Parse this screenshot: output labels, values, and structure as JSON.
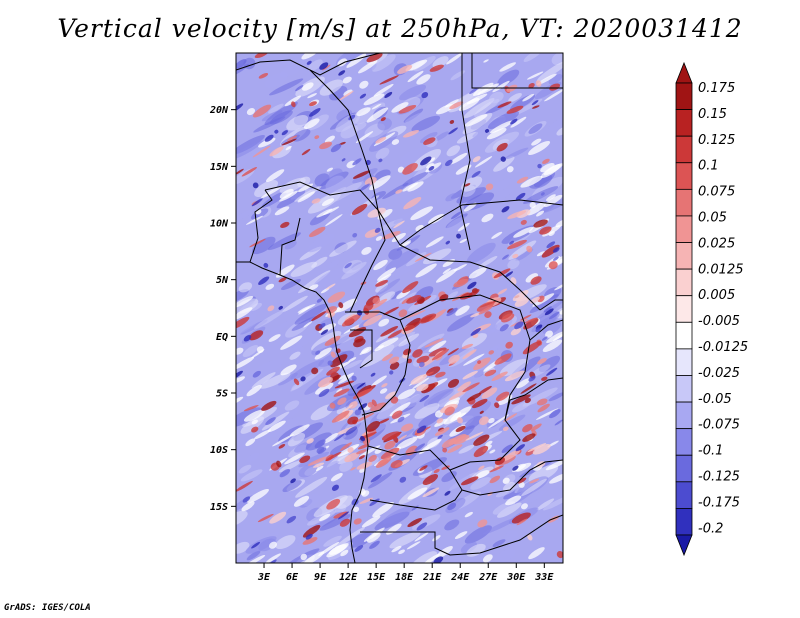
{
  "title": "Vertical velocity [m/s] at 250hPa, VT: 2020031412",
  "footer": "GrADS: IGES/COLA",
  "map": {
    "lon_range": [
      0,
      35
    ],
    "lat_range": [
      -20,
      25
    ],
    "lat_ticks": [
      {
        "value": 20,
        "label": "20N"
      },
      {
        "value": 15,
        "label": "15N"
      },
      {
        "value": 10,
        "label": "10N"
      },
      {
        "value": 5,
        "label": "5N"
      },
      {
        "value": 0,
        "label": "EQ"
      },
      {
        "value": -5,
        "label": "5S"
      },
      {
        "value": -10,
        "label": "10S"
      },
      {
        "value": -15,
        "label": "15S"
      }
    ],
    "lon_ticks": [
      {
        "value": 3,
        "label": "3E"
      },
      {
        "value": 6,
        "label": "6E"
      },
      {
        "value": 9,
        "label": "9E"
      },
      {
        "value": 12,
        "label": "12E"
      },
      {
        "value": 15,
        "label": "15E"
      },
      {
        "value": 18,
        "label": "18E"
      },
      {
        "value": 21,
        "label": "21E"
      },
      {
        "value": 24,
        "label": "24E"
      },
      {
        "value": 27,
        "label": "27E"
      },
      {
        "value": 30,
        "label": "30E"
      },
      {
        "value": 33,
        "label": "33E"
      }
    ]
  },
  "colorbar": {
    "levels": [
      {
        "label": "0.175",
        "color": "#a01414"
      },
      {
        "label": "0.15",
        "color": "#b82222"
      },
      {
        "label": "0.125",
        "color": "#cc3838"
      },
      {
        "label": "0.1",
        "color": "#dc5454"
      },
      {
        "label": "0.075",
        "color": "#e67474"
      },
      {
        "label": "0.05",
        "color": "#f09494"
      },
      {
        "label": "0.025",
        "color": "#f6b4b4"
      },
      {
        "label": "0.0125",
        "color": "#fad0d0"
      },
      {
        "label": "0.005",
        "color": "#fde8e8"
      },
      {
        "label": "-0.005",
        "color": "#ffffff"
      },
      {
        "label": "-0.0125",
        "color": "#e6e6fc"
      },
      {
        "label": "-0.025",
        "color": "#c8c8f8"
      },
      {
        "label": "-0.05",
        "color": "#a8a8f2"
      },
      {
        "label": "-0.075",
        "color": "#8888ea"
      },
      {
        "label": "-0.1",
        "color": "#6a6ade"
      },
      {
        "label": "-0.125",
        "color": "#4c4cd0"
      },
      {
        "label": "-0.175",
        "color": "#3030be"
      },
      {
        "label": "-0.2",
        "color": "#1a1aa6"
      }
    ],
    "top_color": "#a01414",
    "bottom_color": "#1a1aa6"
  }
}
